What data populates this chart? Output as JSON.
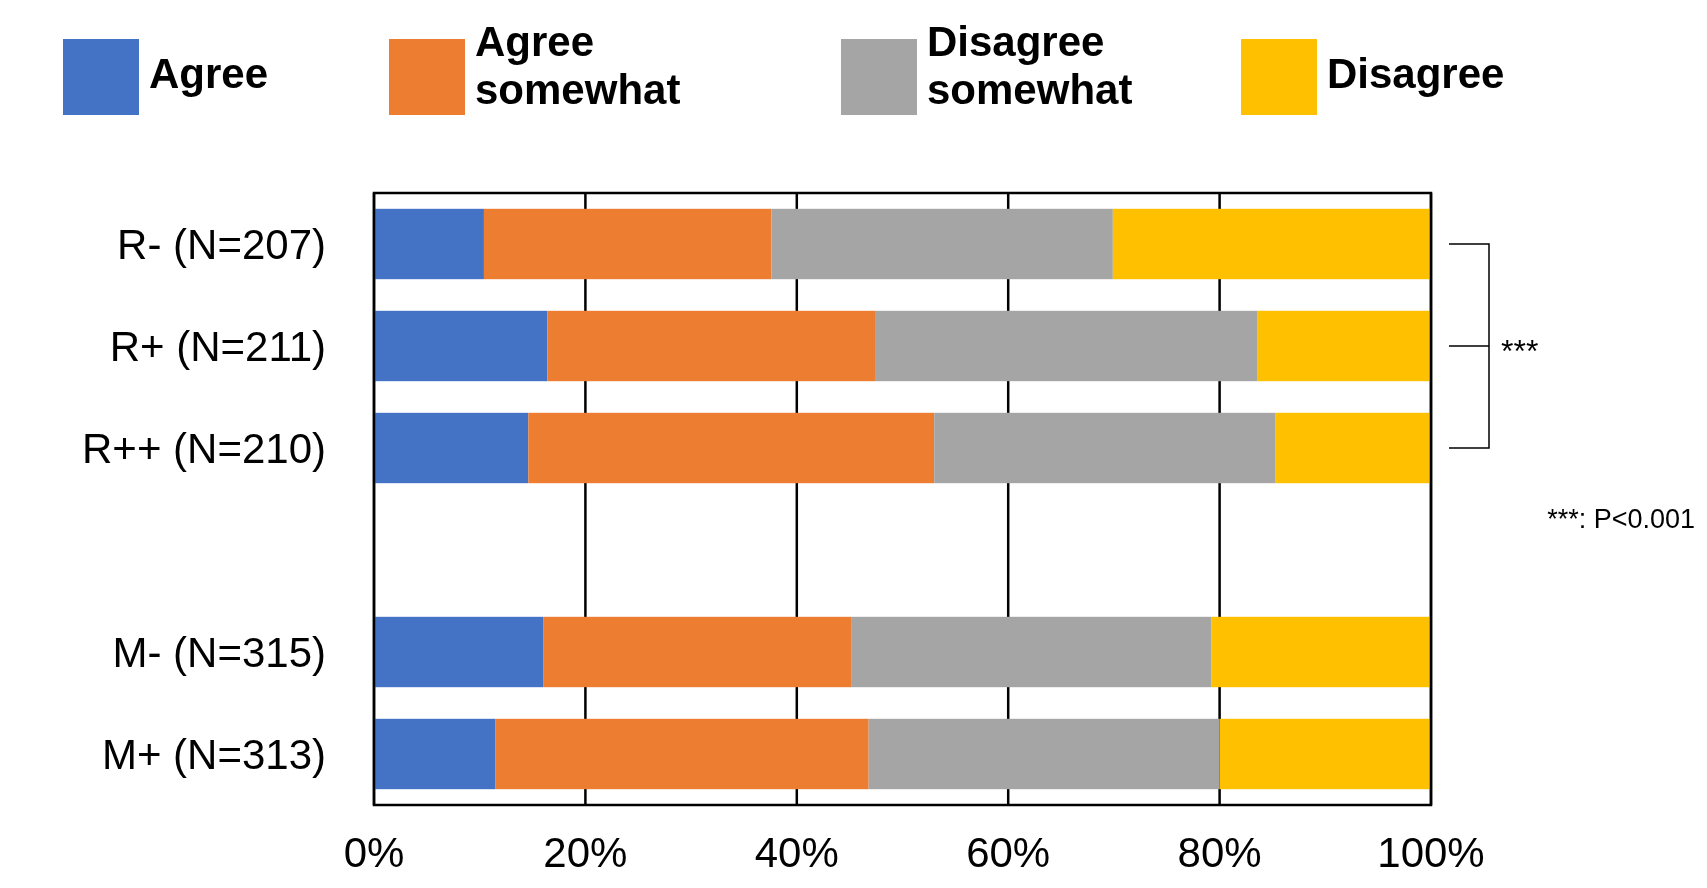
{
  "chart_data": {
    "type": "bar",
    "orientation": "horizontal",
    "stacked": true,
    "categories": [
      "R- (N=207)",
      "R+ (N=211)",
      "R++ (N=210)",
      null,
      "M- (N=315)",
      "M+ (N=313)"
    ],
    "series": [
      {
        "name": "Agree",
        "color": "#4472c4",
        "values": [
          10.4,
          16.4,
          14.6,
          null,
          16.0,
          11.5
        ]
      },
      {
        "name": "Agree somewhat",
        "color": "#ed7d31",
        "values": [
          27.2,
          31.0,
          38.4,
          null,
          29.2,
          35.3
        ]
      },
      {
        "name": "Disagree somewhat",
        "color": "#a5a5a5",
        "values": [
          32.3,
          36.2,
          32.3,
          null,
          34.0,
          33.2
        ]
      },
      {
        "name": "Disagree",
        "color": "#ffc000",
        "values": [
          30.1,
          16.4,
          14.7,
          null,
          20.8,
          20.0
        ]
      }
    ],
    "xlim": [
      0,
      100
    ],
    "xticks": [
      {
        "value": 0,
        "label": "0%"
      },
      {
        "value": 20,
        "label": "20%"
      },
      {
        "value": 40,
        "label": "40%"
      },
      {
        "value": 60,
        "label": "60%"
      },
      {
        "value": 80,
        "label": "80%"
      },
      {
        "value": 100,
        "label": "100%"
      }
    ],
    "grid": "x",
    "legend": "top",
    "annotations": [
      "***",
      "***: P<0.001"
    ]
  }
}
